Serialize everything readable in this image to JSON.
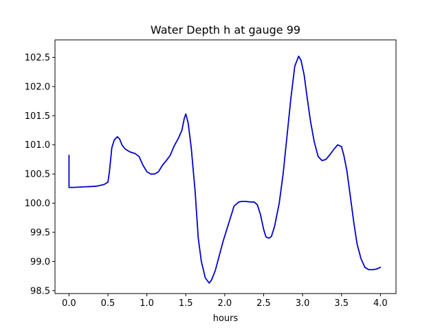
{
  "chart_data": {
    "type": "line",
    "title": "Water Depth h at gauge 99",
    "xlabel": "hours",
    "ylabel": "",
    "xlim": [
      -0.18,
      4.2
    ],
    "ylim": [
      98.45,
      102.8
    ],
    "xticks": [
      0.0,
      0.5,
      1.0,
      1.5,
      2.0,
      2.5,
      3.0,
      3.5,
      4.0
    ],
    "xtick_labels": [
      "0.0",
      "0.5",
      "1.0",
      "1.5",
      "2.0",
      "2.5",
      "3.0",
      "3.5",
      "4.0"
    ],
    "yticks": [
      98.5,
      99.0,
      99.5,
      100.0,
      100.5,
      101.0,
      101.5,
      102.0,
      102.5
    ],
    "ytick_labels": [
      "98.5",
      "99.0",
      "99.5",
      "100.0",
      "100.5",
      "101.0",
      "101.5",
      "102.0",
      "102.5"
    ],
    "grid": false,
    "legend": "none",
    "series": [
      {
        "color": "#0000cc",
        "x": [
          0.0,
          0.0,
          0.05,
          0.2,
          0.35,
          0.45,
          0.5,
          0.52,
          0.55,
          0.58,
          0.62,
          0.65,
          0.68,
          0.72,
          0.78,
          0.85,
          0.9,
          0.95,
          1.0,
          1.05,
          1.1,
          1.15,
          1.2,
          1.25,
          1.3,
          1.35,
          1.4,
          1.45,
          1.48,
          1.5,
          1.53,
          1.57,
          1.62,
          1.66,
          1.7,
          1.75,
          1.8,
          1.83,
          1.88,
          1.93,
          1.98,
          2.05,
          2.12,
          2.18,
          2.22,
          2.27,
          2.33,
          2.38,
          2.42,
          2.46,
          2.5,
          2.53,
          2.57,
          2.6,
          2.64,
          2.7,
          2.75,
          2.8,
          2.85,
          2.9,
          2.95,
          2.98,
          3.02,
          3.06,
          3.1,
          3.15,
          3.2,
          3.25,
          3.3,
          3.35,
          3.4,
          3.45,
          3.5,
          3.53,
          3.57,
          3.62,
          3.66,
          3.7,
          3.75,
          3.8,
          3.85,
          3.9,
          3.95,
          4.0
        ],
        "y": [
          100.82,
          100.27,
          100.27,
          100.28,
          100.29,
          100.32,
          100.36,
          100.55,
          100.95,
          101.08,
          101.14,
          101.1,
          101.0,
          100.93,
          100.88,
          100.85,
          100.8,
          100.65,
          100.54,
          100.5,
          100.5,
          100.54,
          100.65,
          100.73,
          100.82,
          100.98,
          101.1,
          101.25,
          101.45,
          101.53,
          101.38,
          100.95,
          100.2,
          99.4,
          99.0,
          98.72,
          98.63,
          98.68,
          98.85,
          99.1,
          99.35,
          99.65,
          99.95,
          100.02,
          100.03,
          100.03,
          100.02,
          100.02,
          99.97,
          99.8,
          99.55,
          99.42,
          99.4,
          99.43,
          99.6,
          100.0,
          100.5,
          101.15,
          101.8,
          102.35,
          102.52,
          102.45,
          102.2,
          101.8,
          101.42,
          101.05,
          100.8,
          100.73,
          100.75,
          100.83,
          100.92,
          101.0,
          100.97,
          100.82,
          100.55,
          100.05,
          99.65,
          99.3,
          99.05,
          98.9,
          98.86,
          98.86,
          98.87,
          98.9
        ]
      }
    ]
  }
}
